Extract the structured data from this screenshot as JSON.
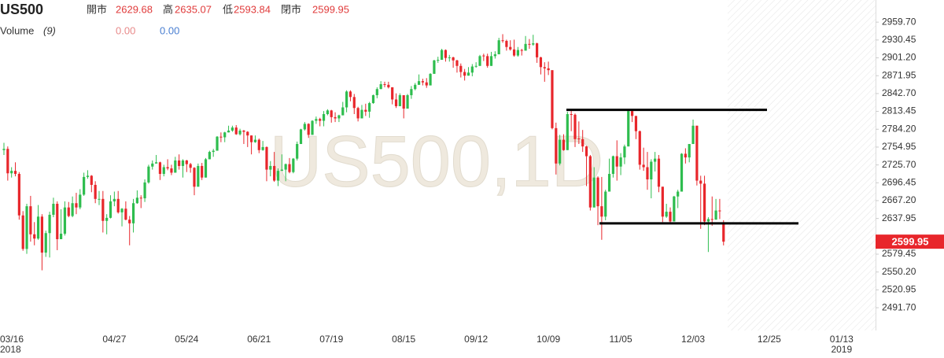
{
  "chart_data": {
    "type": "candlestick",
    "title": "US500",
    "header_labels": [
      "開市",
      "高",
      "低",
      "閉市"
    ],
    "indicator": {
      "name": "Volume",
      "params": "(9)",
      "values": [
        0,
        0
      ],
      "value_labels": [
        "0.00",
        "0.00"
      ],
      "colors": [
        "#e88a8a",
        "#4a7fd1"
      ]
    },
    "watermark": "US500,1D",
    "up_color": "#2ebd4e",
    "down_color": "#e8262b",
    "level_color": "#000000",
    "levels": [
      2816,
      2630
    ],
    "ylim": [
      2457,
      2996
    ],
    "yticks": [
      {
        "value": 2959.7,
        "label": "2959.70"
      },
      2930.45,
      {
        "value": 2901.2,
        "label": "2901.20"
      },
      2871.95,
      {
        "value": 2842.7,
        "label": "2842.70"
      },
      2813.45,
      {
        "value": 2784.2,
        "label": "2784.20"
      },
      2754.95,
      {
        "value": 2725.7,
        "label": "2725.70"
      },
      2696.45,
      {
        "value": 2667.2,
        "label": "2667.20"
      },
      2637.95,
      2579.45,
      {
        "value": 2550.2,
        "label": "2550.20"
      },
      2520.95,
      {
        "value": 2491.7,
        "label": "2491.70"
      }
    ],
    "categories": [
      [
        "03/16",
        "2018"
      ],
      null,
      null,
      null,
      null,
      null,
      null,
      null,
      null,
      null,
      null,
      null,
      null,
      null,
      null,
      null,
      null,
      null,
      null,
      null,
      null,
      null,
      null,
      null,
      null,
      null,
      null,
      null,
      null,
      "04/27",
      null,
      null,
      null,
      null,
      null,
      null,
      null,
      null,
      null,
      null,
      null,
      null,
      null,
      null,
      null,
      null,
      null,
      null,
      "05/24",
      null,
      null,
      null,
      null,
      null,
      null,
      null,
      null,
      null,
      null,
      null,
      null,
      null,
      null,
      null,
      null,
      null,
      null,
      "06/21",
      null,
      null,
      null,
      null,
      null,
      null,
      null,
      null,
      null,
      null,
      null,
      null,
      null,
      null,
      null,
      null,
      null,
      null,
      "07/19",
      null,
      null,
      null,
      null,
      null,
      null,
      null,
      null,
      null,
      null,
      null,
      null,
      null,
      null,
      null,
      null,
      null,
      null,
      "08/15",
      null,
      null,
      null,
      null,
      null,
      null,
      null,
      null,
      null,
      null,
      null,
      null,
      null,
      null,
      null,
      null,
      null,
      null,
      "09/12",
      null,
      null,
      null,
      null,
      null,
      null,
      null,
      null,
      null,
      null,
      null,
      null,
      null,
      null,
      null,
      null,
      null,
      null,
      "10/09",
      null,
      null,
      null,
      null,
      null,
      null,
      null,
      null,
      null,
      null,
      null,
      null,
      null,
      null,
      null,
      null,
      null,
      null,
      "11/05",
      null,
      null,
      null,
      null,
      null,
      null,
      null,
      null,
      null,
      null,
      null,
      null,
      null,
      null,
      null,
      null,
      null,
      null,
      "12/03",
      null,
      null,
      null,
      null,
      null,
      null,
      null,
      null,
      null,
      null,
      null,
      null,
      null,
      null,
      null,
      null,
      null,
      null,
      null,
      "12/25",
      null,
      null,
      null,
      null,
      null,
      null,
      null,
      null,
      null,
      null,
      null,
      null,
      null,
      null,
      null,
      null,
      null,
      null,
      [
        "01/13",
        "2019"
      ]
    ],
    "open": [
      2750,
      2752,
      2712,
      2716,
      2711,
      2643,
      2588,
      2658,
      2612,
      2605,
      2641,
      2582,
      2614,
      2644,
      2662,
      2604,
      2613,
      2656,
      2642,
      2663,
      2656,
      2677,
      2706,
      2708,
      2693,
      2669,
      2670,
      2634,
      2639,
      2666,
      2670,
      2648,
      2654,
      2636,
      2630,
      2663,
      2672,
      2671,
      2697,
      2723,
      2728,
      2730,
      2711,
      2722,
      2720,
      2713,
      2733,
      2724,
      2733,
      2727,
      2721,
      2690,
      2724,
      2705,
      2735,
      2747,
      2749,
      2772,
      2771,
      2779,
      2782,
      2787,
      2776,
      2782,
      2780,
      2774,
      2763,
      2767,
      2750,
      2755,
      2718,
      2724,
      2700,
      2716,
      2718,
      2727,
      2714,
      2736,
      2760,
      2784,
      2793,
      2775,
      2798,
      2801,
      2798,
      2809,
      2815,
      2804,
      2802,
      2807,
      2820,
      2846,
      2837,
      2819,
      2802,
      2816,
      2813,
      2827,
      2840,
      2850,
      2858,
      2857,
      2853,
      2833,
      2822,
      2840,
      2818,
      2840,
      2850,
      2857,
      2863,
      2861,
      2856,
      2875,
      2897,
      2898,
      2914,
      2901,
      2902,
      2897,
      2888,
      2878,
      2872,
      2877,
      2887,
      2888,
      2905,
      2904,
      2888,
      2904,
      2907,
      2930,
      2929,
      2919,
      2915,
      2905,
      2914,
      2913,
      2924,
      2923,
      2925,
      2902,
      2886,
      2884,
      2881,
      2786,
      2728,
      2767,
      2750,
      2809,
      2808,
      2769,
      2768,
      2756,
      2740,
      2656,
      2705,
      2658,
      2641,
      2682,
      2711,
      2740,
      2723,
      2738,
      2756,
      2814,
      2806,
      2781,
      2726,
      2722,
      2702,
      2731,
      2736,
      2690,
      2641,
      2649,
      2633,
      2674,
      2682,
      2744,
      2738,
      2760,
      2790,
      2700,
      2695,
      2633,
      2637,
      2636,
      2651,
      2629.68,
      null,
      null,
      null,
      null,
      null,
      null,
      null,
      null,
      null,
      null,
      null,
      null,
      null,
      null,
      null,
      null,
      null,
      null,
      null,
      null,
      null,
      null,
      null,
      null,
      null,
      null,
      null,
      null,
      null,
      null,
      null
    ],
    "high": [
      2762,
      2756,
      2722,
      2730,
      2714,
      2650,
      2662,
      2675,
      2632,
      2660,
      2645,
      2618,
      2649,
      2672,
      2666,
      2653,
      2666,
      2665,
      2674,
      2680,
      2686,
      2713,
      2717,
      2709,
      2699,
      2683,
      2683,
      2645,
      2676,
      2682,
      2683,
      2655,
      2666,
      2642,
      2670,
      2684,
      2676,
      2702,
      2726,
      2733,
      2742,
      2731,
      2726,
      2735,
      2726,
      2739,
      2743,
      2735,
      2734,
      2729,
      2722,
      2728,
      2729,
      2737,
      2749,
      2752,
      2773,
      2779,
      2780,
      2790,
      2790,
      2791,
      2785,
      2783,
      2781,
      2774,
      2774,
      2769,
      2765,
      2756,
      2732,
      2747,
      2720,
      2743,
      2728,
      2737,
      2737,
      2764,
      2785,
      2796,
      2794,
      2799,
      2805,
      2803,
      2814,
      2817,
      2816,
      2812,
      2808,
      2829,
      2848,
      2848,
      2842,
      2821,
      2824,
      2826,
      2829,
      2841,
      2853,
      2863,
      2862,
      2862,
      2853,
      2843,
      2843,
      2840,
      2842,
      2855,
      2860,
      2874,
      2867,
      2868,
      2876,
      2898,
      2903,
      2916,
      2915,
      2906,
      2903,
      2898,
      2892,
      2883,
      2886,
      2891,
      2894,
      2906,
      2908,
      2908,
      2911,
      2912,
      2934,
      2940,
      2931,
      2930,
      2931,
      2919,
      2916,
      2937,
      2932,
      2939,
      2926,
      2903,
      2894,
      2895,
      2881,
      2795,
      2775,
      2776,
      2813,
      2816,
      2810,
      2797,
      2783,
      2757,
      2742,
      2722,
      2707,
      2706,
      2685,
      2736,
      2741,
      2766,
      2745,
      2759,
      2815,
      2815,
      2806,
      2782,
      2754,
      2747,
      2735,
      2747,
      2742,
      2690,
      2662,
      2656,
      2675,
      2685,
      2745,
      2753,
      2760,
      2800,
      2790,
      2708,
      2708,
      2640,
      2674,
      2670,
      2670,
      2635.07,
      null,
      null,
      null,
      null,
      null,
      null,
      null,
      null,
      null,
      null,
      null,
      null,
      null,
      null,
      null,
      null,
      null,
      null,
      null,
      null,
      null,
      null,
      null,
      null,
      null,
      null,
      null,
      null,
      null,
      null,
      null
    ],
    "low": [
      2742,
      2700,
      2705,
      2707,
      2636,
      2585,
      2580,
      2600,
      2594,
      2603,
      2553,
      2575,
      2574,
      2640,
      2586,
      2604,
      2610,
      2640,
      2640,
      2645,
      2653,
      2675,
      2703,
      2681,
      2663,
      2660,
      2615,
      2612,
      2638,
      2658,
      2646,
      2625,
      2635,
      2594,
      2615,
      2662,
      2655,
      2665,
      2695,
      2718,
      2728,
      2701,
      2707,
      2717,
      2709,
      2713,
      2718,
      2705,
      2714,
      2713,
      2676,
      2690,
      2701,
      2705,
      2735,
      2739,
      2749,
      2763,
      2763,
      2779,
      2780,
      2775,
      2774,
      2760,
      2755,
      2743,
      2762,
      2745,
      2749,
      2699,
      2707,
      2698,
      2691,
      2716,
      2699,
      2712,
      2712,
      2733,
      2760,
      2782,
      2770,
      2775,
      2793,
      2789,
      2789,
      2807,
      2795,
      2796,
      2796,
      2807,
      2812,
      2830,
      2809,
      2797,
      2802,
      2806,
      2803,
      2826,
      2835,
      2850,
      2853,
      2851,
      2825,
      2819,
      2822,
      2802,
      2818,
      2834,
      2848,
      2857,
      2856,
      2852,
      2856,
      2875,
      2893,
      2898,
      2895,
      2895,
      2885,
      2877,
      2869,
      2864,
      2872,
      2871,
      2885,
      2888,
      2896,
      2885,
      2888,
      2900,
      2907,
      2926,
      2913,
      2913,
      2903,
      2903,
      2905,
      2913,
      2916,
      2921,
      2893,
      2874,
      2862,
      2873,
      2784,
      2710,
      2725,
      2749,
      2750,
      2781,
      2755,
      2760,
      2747,
      2691,
      2651,
      2656,
      2627,
      2603,
      2635,
      2682,
      2705,
      2700,
      2709,
      2727,
      2756,
      2796,
      2768,
      2718,
      2716,
      2685,
      2671,
      2715,
      2681,
      2632,
      2639,
      2631,
      2633,
      2655,
      2682,
      2728,
      2730,
      2760,
      2692,
      2621,
      2627,
      2583,
      2626,
      2636,
      2637,
      2593.84,
      null,
      null,
      null,
      null,
      null,
      null,
      null,
      null,
      null,
      null,
      null,
      null,
      null,
      null,
      null,
      null,
      null,
      null,
      null,
      null,
      null,
      null,
      null,
      null,
      null,
      null,
      null,
      null,
      null,
      null,
      null
    ],
    "close": [
      2752,
      2712,
      2716,
      2711,
      2643,
      2588,
      2658,
      2612,
      2605,
      2641,
      2582,
      2614,
      2644,
      2662,
      2604,
      2613,
      2656,
      2642,
      2663,
      2656,
      2677,
      2706,
      2708,
      2693,
      2670,
      2670,
      2634,
      2639,
      2666,
      2670,
      2648,
      2654,
      2636,
      2630,
      2663,
      2672,
      2671,
      2697,
      2723,
      2728,
      2730,
      2711,
      2722,
      2720,
      2713,
      2733,
      2724,
      2733,
      2727,
      2721,
      2690,
      2724,
      2705,
      2735,
      2747,
      2749,
      2772,
      2771,
      2779,
      2782,
      2787,
      2776,
      2782,
      2780,
      2774,
      2763,
      2767,
      2750,
      2755,
      2718,
      2724,
      2700,
      2716,
      2718,
      2727,
      2714,
      2736,
      2760,
      2784,
      2793,
      2775,
      2798,
      2801,
      2798,
      2809,
      2815,
      2804,
      2802,
      2807,
      2820,
      2846,
      2837,
      2819,
      2802,
      2816,
      2813,
      2827,
      2840,
      2850,
      2858,
      2857,
      2853,
      2833,
      2822,
      2840,
      2818,
      2840,
      2850,
      2857,
      2863,
      2861,
      2856,
      2875,
      2897,
      2898,
      2914,
      2901,
      2902,
      2897,
      2888,
      2878,
      2872,
      2877,
      2887,
      2888,
      2904,
      2904,
      2888,
      2904,
      2907,
      2930,
      2929,
      2919,
      2915,
      2905,
      2914,
      2913,
      2924,
      2923,
      2925,
      2902,
      2886,
      2884,
      2881,
      2786,
      2728,
      2767,
      2750,
      2809,
      2808,
      2768,
      2768,
      2756,
      2740,
      2656,
      2705,
      2658,
      2641,
      2682,
      2711,
      2740,
      2723,
      2738,
      2756,
      2814,
      2806,
      2781,
      2726,
      2722,
      2702,
      2731,
      2736,
      2690,
      2641,
      2649,
      2633,
      2674,
      2682,
      2744,
      2738,
      2760,
      2790,
      2700,
      2695,
      2633,
      2637,
      2636,
      2651,
      2650,
      2599.95,
      null,
      null,
      null,
      null,
      null,
      null,
      null,
      null,
      null,
      null,
      null,
      null,
      null,
      null,
      null,
      null,
      null,
      null,
      null,
      null,
      null,
      null,
      null,
      null,
      null,
      null,
      null,
      null,
      null,
      null,
      null
    ]
  }
}
